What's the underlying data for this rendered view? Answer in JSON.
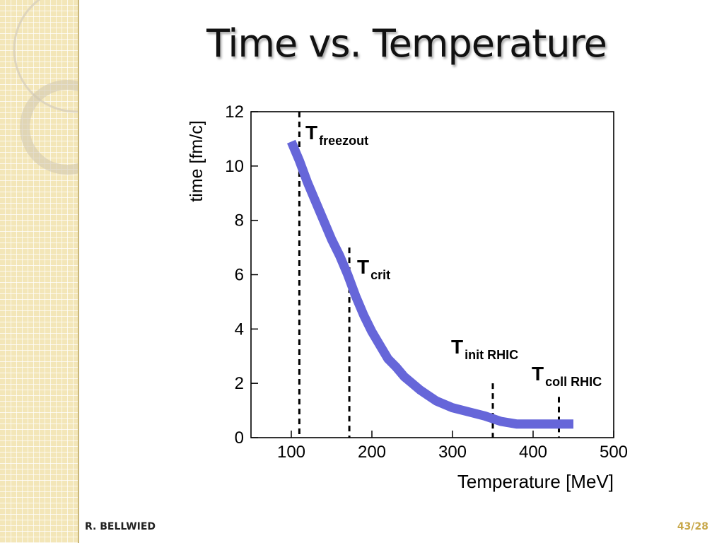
{
  "slide": {
    "title": "Time vs. Temperature",
    "footer_author": "R. BELLWIED",
    "page_label": "43/28",
    "accent_color": "#c8a84a",
    "sidebar_color": "#f3e6b8"
  },
  "chart_data": {
    "type": "line",
    "xlabel": "Temperature  [MeV]",
    "ylabel": "time [fm/c]",
    "xlim": [
      50,
      500
    ],
    "ylim": [
      0,
      12
    ],
    "xticks": [
      100,
      200,
      300,
      400,
      500
    ],
    "yticks": [
      0,
      2,
      4,
      6,
      8,
      10,
      12
    ],
    "grid": false,
    "series": [
      {
        "color": "#6666d9",
        "x": [
          100,
          110,
          120,
          130,
          140,
          150,
          160,
          170,
          180,
          190,
          200,
          210,
          220,
          230,
          240,
          250,
          260,
          270,
          280,
          300,
          320,
          340,
          360,
          380,
          400,
          420,
          450
        ],
        "y": [
          10.9,
          10.2,
          9.4,
          8.7,
          8.0,
          7.3,
          6.7,
          6.0,
          5.2,
          4.5,
          3.9,
          3.4,
          2.9,
          2.6,
          2.25,
          2.0,
          1.75,
          1.55,
          1.35,
          1.1,
          0.95,
          0.8,
          0.6,
          0.5,
          0.5,
          0.5,
          0.5
        ]
      }
    ],
    "markers": [
      {
        "name": "T",
        "sub": "freezout",
        "x": 110,
        "y_top": 12
      },
      {
        "name": "T",
        "sub": "crit",
        "x": 172,
        "y_top": 7
      },
      {
        "name": "T",
        "sub": "init RHIC",
        "x": 350,
        "y_top": 2
      },
      {
        "name": "T",
        "sub": "coll RHIC",
        "x": 432,
        "y_top": 1.5
      }
    ]
  }
}
